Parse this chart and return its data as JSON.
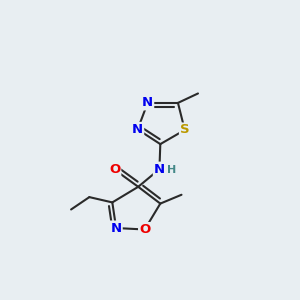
{
  "background_color": "#e8eef2",
  "bond_color": "#2a2a2a",
  "bond_width": 1.5,
  "atom_colors": {
    "N": "#0000ee",
    "O": "#ee0000",
    "S": "#bb9900",
    "H": "#448888"
  },
  "font_size": 9.5
}
